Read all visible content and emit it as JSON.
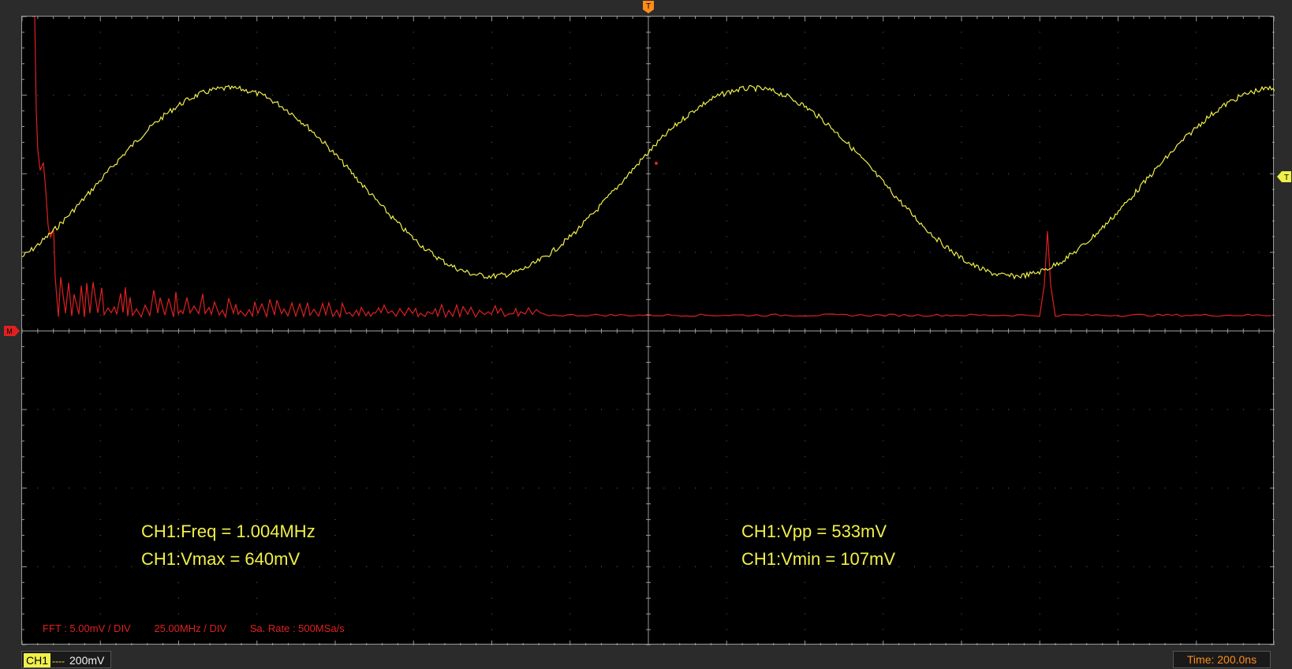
{
  "measurements": {
    "freq": "CH1:Freq = 1.004MHz",
    "vmax": "CH1:Vmax = 640mV",
    "vpp": "CH1:Vpp = 533mV",
    "vmin": "CH1:Vmin = 107mV"
  },
  "fft": {
    "vdiv": "FFT :  5.00mV / DIV",
    "fdiv": "25.00MHz / DIV",
    "sarate": "Sa. Rate : 500MSa/s"
  },
  "channel": {
    "name": "CH1",
    "coupling": "----",
    "scale": "200mV"
  },
  "timebase": "Time: 200.0ns",
  "markers": {
    "trigger_top": "T",
    "trigger_level": "T",
    "math": "M"
  },
  "colors": {
    "ch1": "#f0f04a",
    "fft": "#e02020",
    "trigger": "#ff8c1a",
    "grid": "#9a9a9a"
  }
}
